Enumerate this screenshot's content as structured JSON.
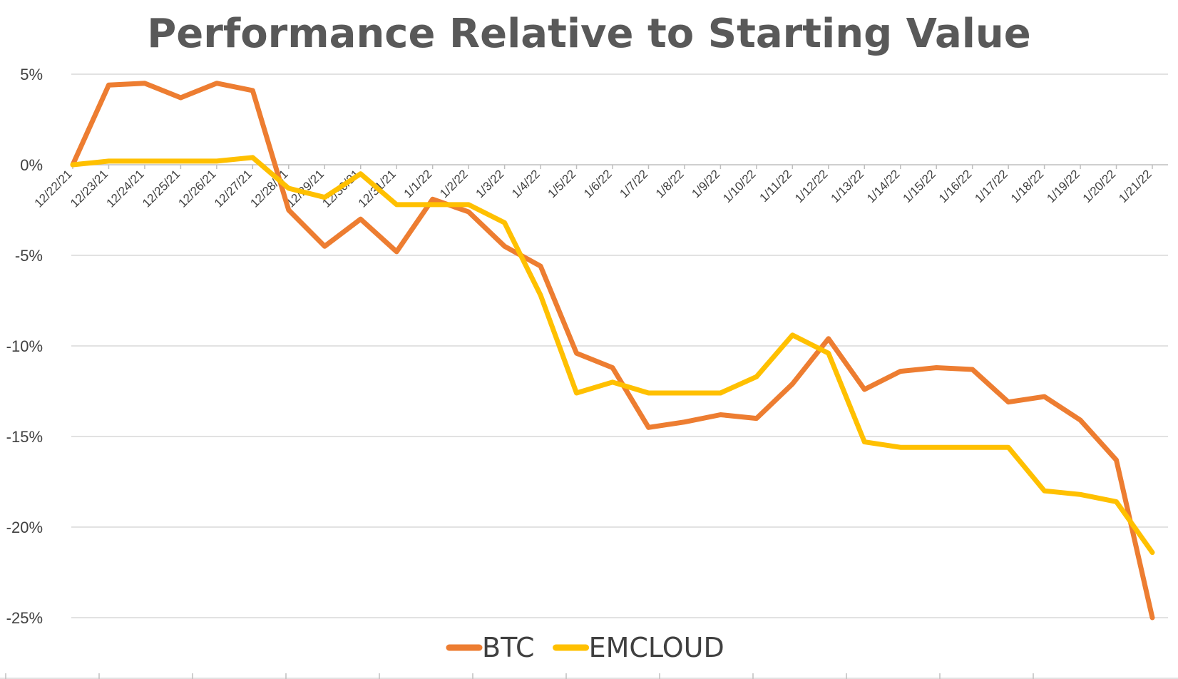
{
  "chart_data": {
    "type": "line",
    "title": "Performance Relative to Starting Value",
    "categories": [
      "12/22/21",
      "12/23/21",
      "12/24/21",
      "12/25/21",
      "12/26/21",
      "12/27/21",
      "12/28/21",
      "12/29/21",
      "12/30/21",
      "12/31/21",
      "1/1/22",
      "1/2/22",
      "1/3/22",
      "1/4/22",
      "1/5/22",
      "1/6/22",
      "1/7/22",
      "1/8/22",
      "1/9/22",
      "1/10/22",
      "1/11/22",
      "1/12/22",
      "1/13/22",
      "1/14/22",
      "1/15/22",
      "1/16/22",
      "1/17/22",
      "1/18/22",
      "1/19/22",
      "1/20/22",
      "1/21/22"
    ],
    "y_ticks": [
      "5%",
      "0%",
      "-5%",
      "-10%",
      "-15%",
      "-20%",
      "-25%"
    ],
    "y_tick_values": [
      5,
      0,
      -5,
      -10,
      -15,
      -20,
      -25
    ],
    "ylim": [
      -25,
      5
    ],
    "y_unit": "%",
    "grid": true,
    "legend_position": "bottom",
    "series": [
      {
        "name": "BTC",
        "color": "#ED7D31",
        "values": [
          0,
          4.4,
          4.5,
          3.7,
          4.5,
          4.1,
          -2.5,
          -4.5,
          -3.0,
          -4.8,
          -1.9,
          -2.6,
          -4.5,
          -5.6,
          -10.4,
          -11.2,
          -14.5,
          -14.2,
          -13.8,
          -14.0,
          -12.1,
          -9.6,
          -12.4,
          -11.4,
          -11.2,
          -11.3,
          -13.1,
          -12.8,
          -14.1,
          -16.3,
          -25.0
        ]
      },
      {
        "name": "EMCLOUD",
        "color": "#FFC000",
        "values": [
          0,
          0.2,
          0.2,
          0.2,
          0.2,
          0.4,
          -1.3,
          -1.8,
          -0.5,
          -2.2,
          -2.2,
          -2.2,
          -3.2,
          -7.2,
          -12.6,
          -12.0,
          -12.6,
          -12.6,
          -12.6,
          -11.7,
          -9.4,
          -10.4,
          -15.3,
          -15.6,
          -15.6,
          -15.6,
          -15.6,
          -18.0,
          -18.2,
          -18.6,
          -21.4
        ]
      }
    ]
  }
}
